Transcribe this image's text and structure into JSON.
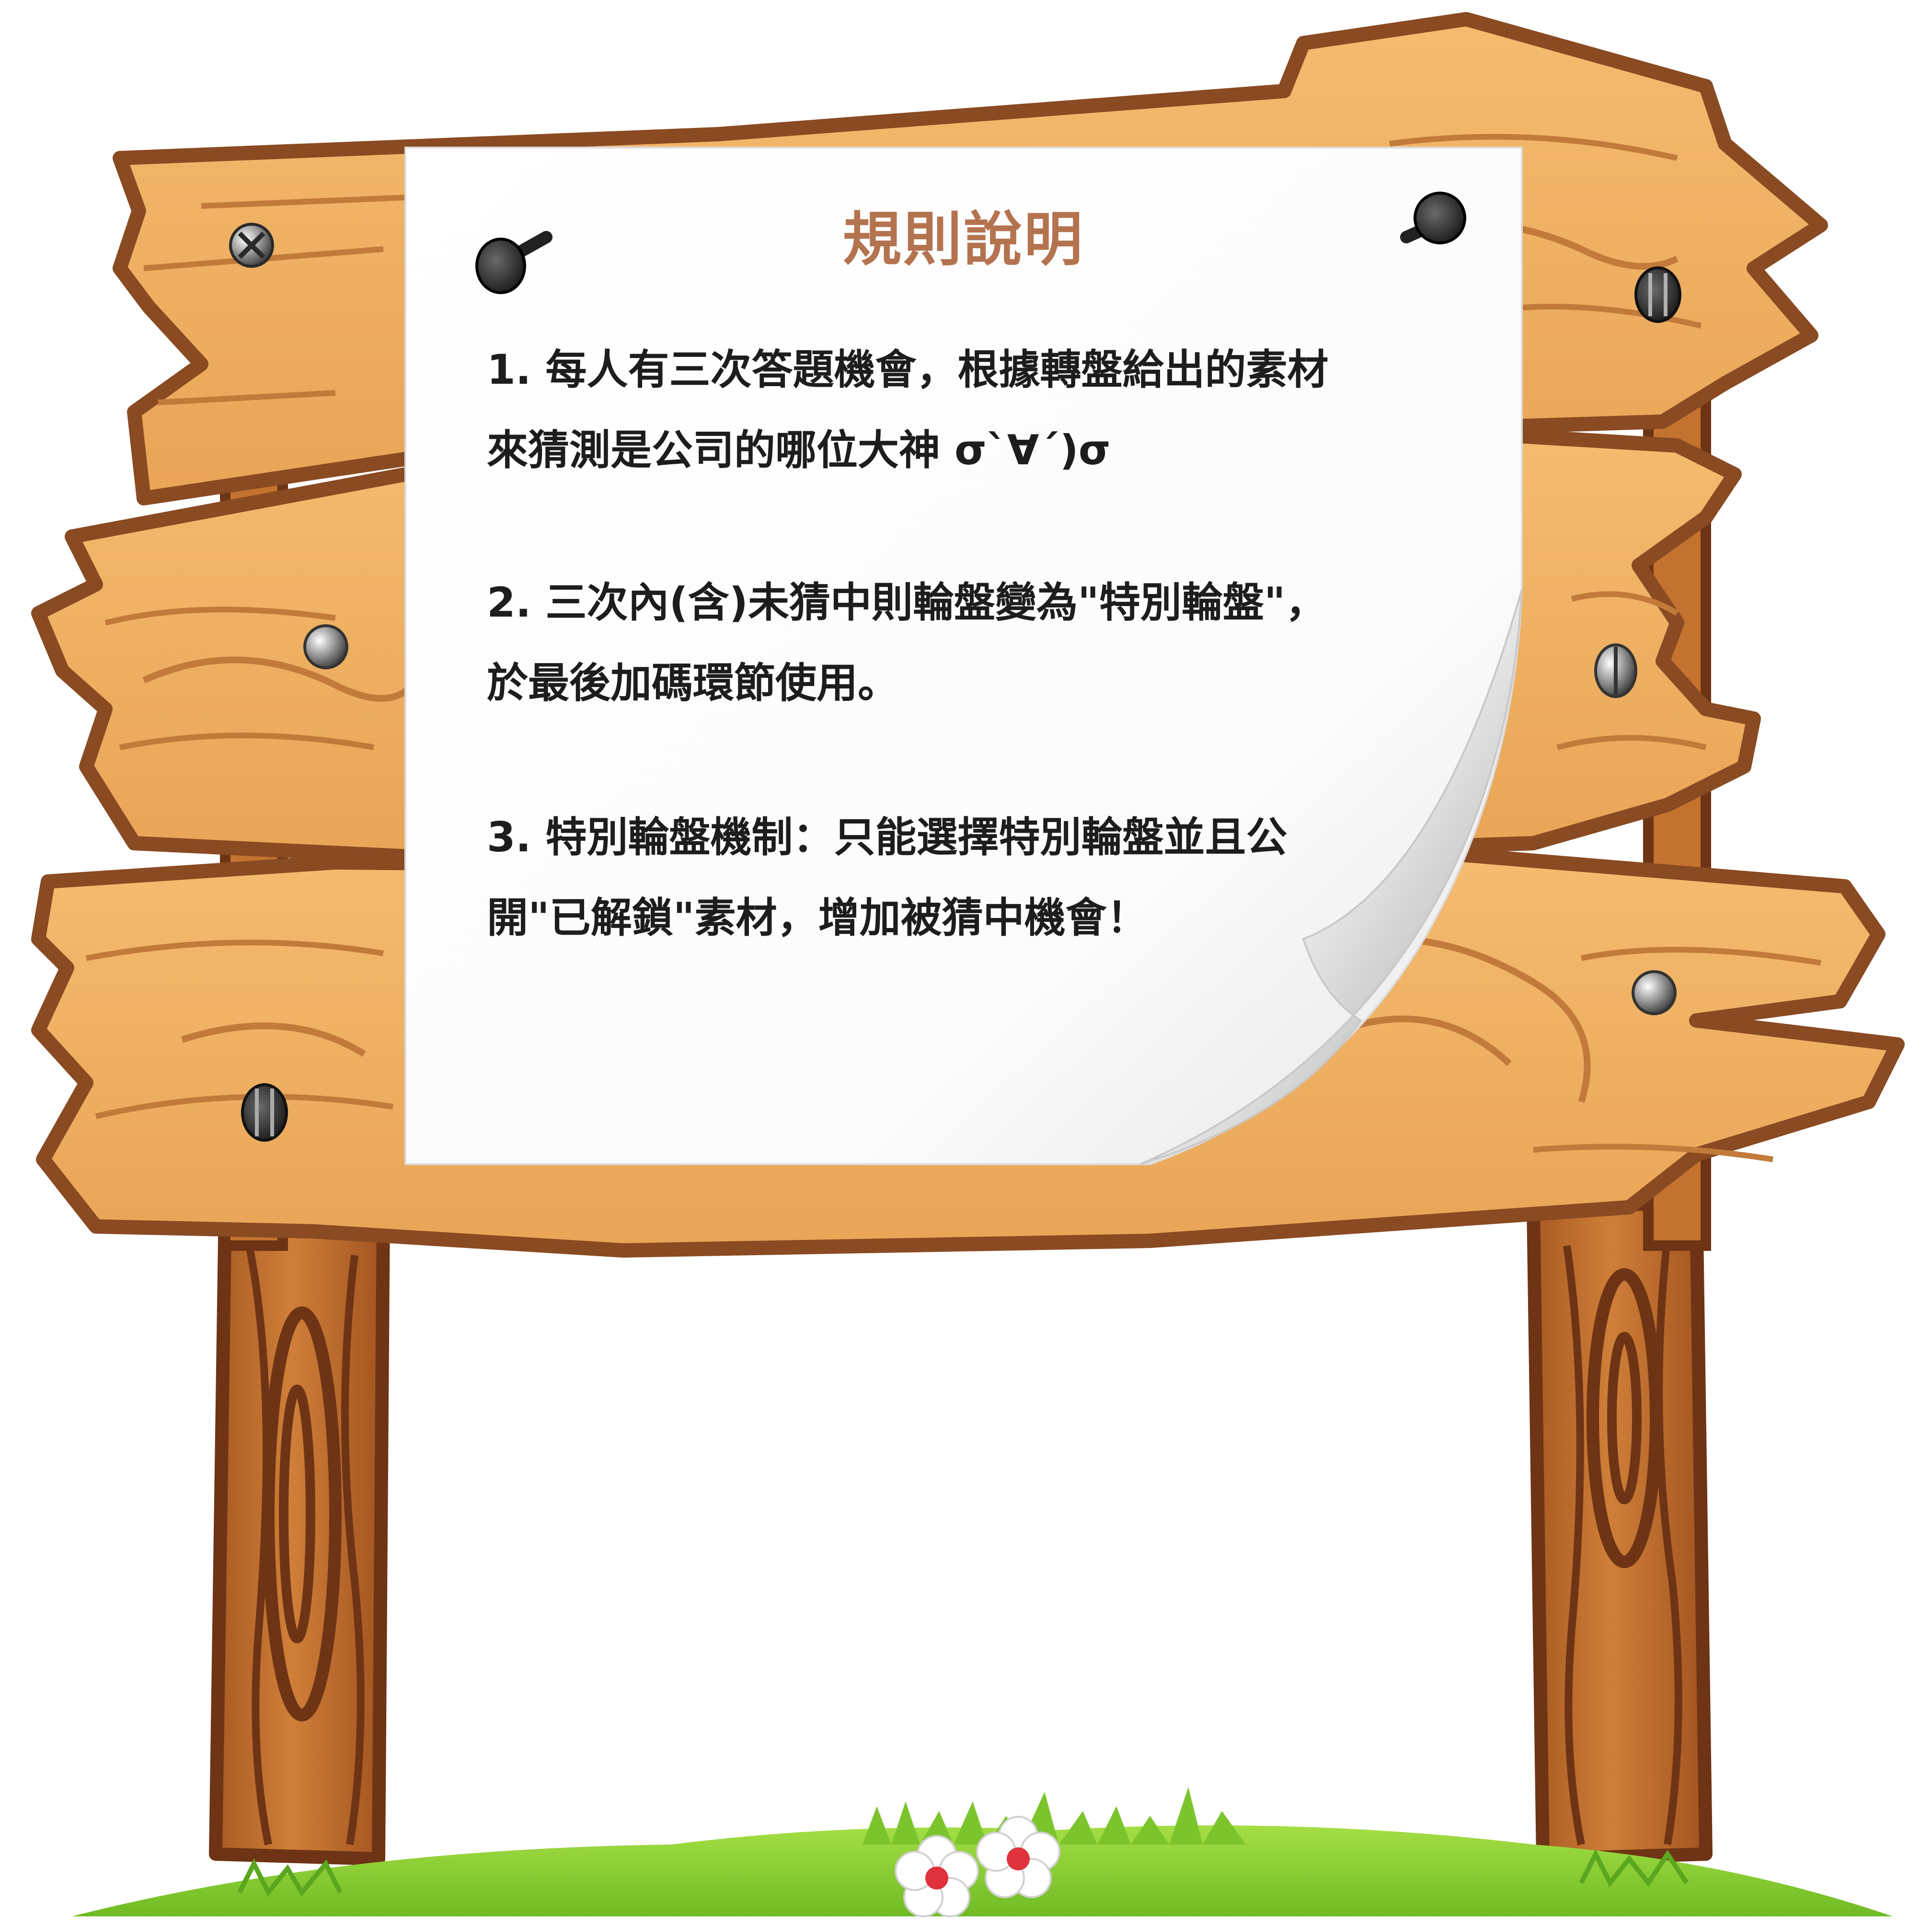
{
  "rules_board": {
    "title": "規則說明",
    "rules": [
      {
        "lines": [
          "1. 每人有三次答題機會，根據轉盤給出的素材",
          "來猜測是公司的哪位大神 σ`∀´)σ"
        ]
      },
      {
        "lines": [
          "2. 三次內(含)未猜中則輪盤變為\"特別輪盤\"，",
          "於最後加碼環節使用。"
        ]
      },
      {
        "lines": [
          "3. 特別輪盤機制：只能選擇特別輪盤並且公",
          "開\"已解鎖\"素材，增加被猜中機會！"
        ]
      }
    ]
  },
  "colors": {
    "wood_light": "#efb062",
    "wood_outline": "#8a4a22",
    "post": "#c3732f",
    "post_outline": "#6e3415",
    "paper": "#ffffff",
    "title": "#b4734f",
    "text": "#1d1d1d",
    "grass": "#8fd23a",
    "grass_dark": "#5aa61e",
    "flower_petal": "#ffffff",
    "flower_center": "#e0323c"
  },
  "icons": [
    "phillips-screw-icon",
    "flat-screw-icon",
    "round-nail-head-icon",
    "push-pin-icon",
    "flower-icon"
  ]
}
